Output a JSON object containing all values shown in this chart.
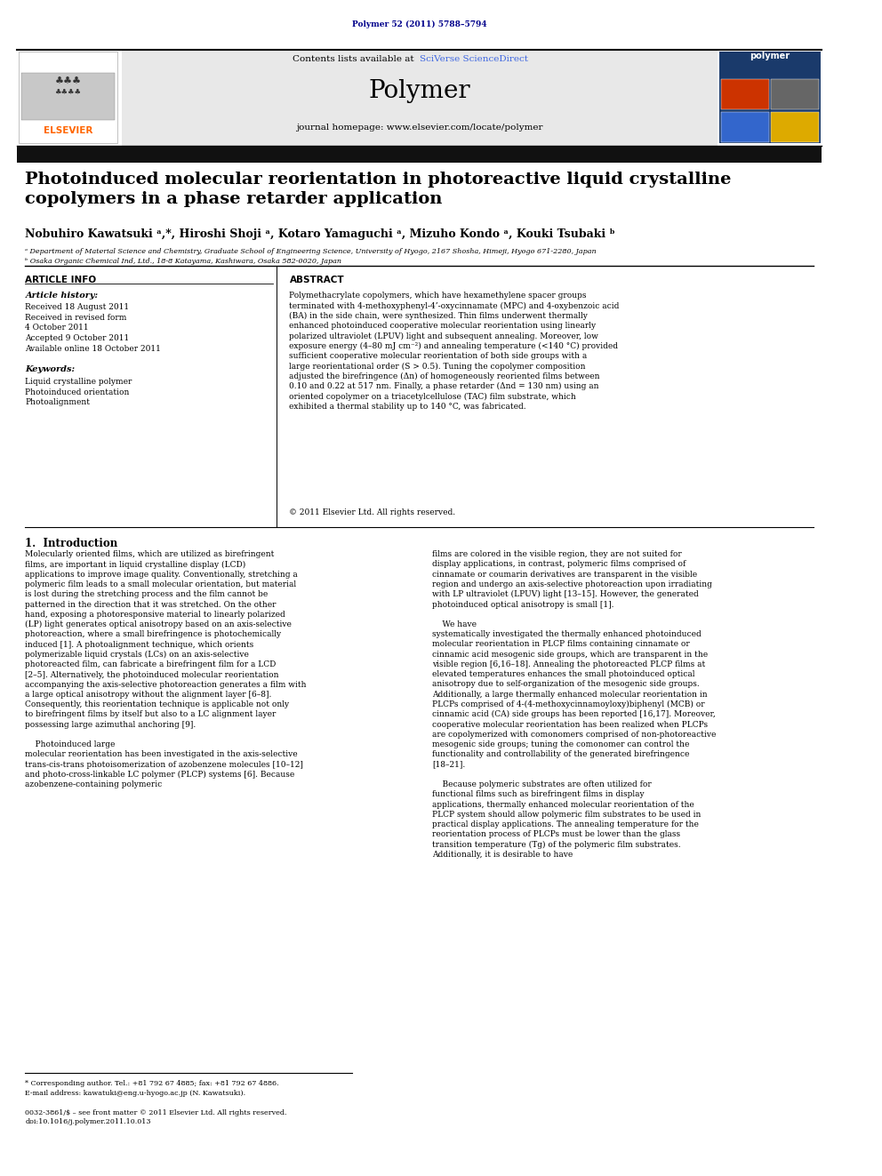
{
  "page_width": 9.92,
  "page_height": 13.23,
  "bg_color": "#ffffff",
  "journal_ref": "Polymer 52 (2011) 5788–5794",
  "journal_ref_color": "#00008B",
  "header_bg": "#e8e8e8",
  "header_text_main": "Polymer",
  "header_contents": "Contents lists available at SciVerse ScienceDirect",
  "header_sciverse": "SciVerse ScienceDirect",
  "header_homepage": "journal homepage: www.elsevier.com/locate/polymer",
  "elsevier_color": "#FF6600",
  "sciverse_color": "#4169E1",
  "article_title": "Photoinduced molecular reorientation in photoreactive liquid crystalline\ncopolymers in a phase retarder application",
  "authors": "Nobuhiro Kawatsuki ᵃ,*, Hiroshi Shoji ᵃ, Kotaro Yamaguchi ᵃ, Mizuho Kondo ᵃ, Kouki Tsubaki ᵇ",
  "affil_a": "ᵃ Department of Material Science and Chemistry, Graduate School of Engineering Science, University of Hyogo, 2167 Shosha, Himeji, Hyogo 671-2280, Japan",
  "affil_b": "ᵇ Osaka Organic Chemical Ind, Ltd., 18-8 Katayama, Kashiwara, Osaka 582-0020, Japan",
  "article_info_label": "ARTICLE INFO",
  "abstract_label": "ABSTRACT",
  "article_history_label": "Article history:",
  "received": "Received 18 August 2011",
  "received_revised1": "Received in revised form",
  "received_revised2": "4 October 2011",
  "accepted": "Accepted 9 October 2011",
  "available": "Available online 18 October 2011",
  "keywords_label": "Keywords:",
  "keyword1": "Liquid crystalline polymer",
  "keyword2": "Photoinduced orientation",
  "keyword3": "Photoalignment",
  "abstract_text": "Polymethacrylate copolymers, which have hexamethylene spacer groups terminated with 4-methoxyphenyl-4’-oxycinnamate (MPC) and 4-oxybenzoic acid (BA) in the side chain, were synthesized. Thin films underwent thermally enhanced photoinduced cooperative molecular reorientation using linearly polarized ultraviolet (LPUV) light and subsequent annealing. Moreover, low exposure energy (4–80 mJ cm⁻²) and annealing temperature (<140 °C) provided sufficient cooperative molecular reorientation of both side groups with a large reorientational order (S > 0.5). Tuning the copolymer composition adjusted the birefringence (Δn) of homogeneously reoriented films between 0.10 and 0.22 at 517 nm. Finally, a phase retarder (Δnd = 130 nm) using an oriented copolymer on a triacetylcellulose (TAC) film substrate, which exhibited a thermal stability up to 140 °C, was fabricated.",
  "copyright": "© 2011 Elsevier Ltd. All rights reserved.",
  "intro_label": "1.  Introduction",
  "intro_col1": "Molecularly oriented films, which are utilized as birefringent films, are important in liquid crystalline display (LCD) applications to improve image quality. Conventionally, stretching a polymeric film leads to a small molecular orientation, but material is lost during the stretching process and the film cannot be patterned in the direction that it was stretched. On the other hand, exposing a photoresponsive material to linearly polarized (LP) light generates optical anisotropy based on an axis-selective photoreaction, where a small birefringence is photochemically induced [1]. A photoalignment technique, which orients polymerizable liquid crystals (LCs) on an axis-selective photoreacted film, can fabricate a birefringent film for a LCD [2–5]. Alternatively, the photoinduced molecular reorientation accompanying the axis-selective photoreaction generates a film with a large optical anisotropy without the alignment layer [6–8]. Consequently, this reorientation technique is applicable not only to birefringent films by itself but also to a LC alignment layer possessing large azimuthal anchoring [9].\n\n    Photoinduced large molecular reorientation has been investigated in the axis-selective trans-cis-trans photoisomerization of azobenzene molecules [10–12] and photo-cross-linkable LC polymer (PLCP) systems [6]. Because azobenzene-containing polymeric",
  "intro_col2": "films are colored in the visible region, they are not suited for display applications, in contrast, polymeric films comprised of cinnamate or coumarin derivatives are transparent in the visible region and undergo an axis-selective photoreaction upon irradiating with LP ultraviolet (LPUV) light [13–15]. However, the generated photoinduced optical anisotropy is small [1].\n\n    We have systematically investigated the thermally enhanced photoinduced molecular reorientation in PLCP films containing cinnamate or cinnamic acid mesogenic side groups, which are transparent in the visible region [6,16–18]. Annealing the photoreacted PLCP films at elevated temperatures enhances the small photoinduced optical anisotropy due to self-organization of the mesogenic side groups. Additionally, a large thermally enhanced molecular reorientation in PLCPs comprised of 4-(4-methoxycinnamoyloxy)biphenyl (MCB) or cinnamic acid (CA) side groups has been reported [16,17]. Moreover, cooperative molecular reorientation has been realized when PLCPs are copolymerized with comonomers comprised of non-photoreactive mesogenic side groups; tuning the comonomer can control the functionality and controllability of the generated birefringence [18–21].\n\n    Because polymeric substrates are often utilized for functional films such as birefringent films in display applications, thermally enhanced molecular reorientation of the PLCP system should allow polymeric film substrates to be used in practical display applications. The annealing temperature for the reorientation process of PLCPs must be lower than the glass transition temperature (Tg) of the polymeric film substrates. Additionally, it is desirable to have",
  "footnote1": "* Corresponding author. Tel.: +81 792 67 4885; fax: +81 792 67 4886.",
  "footnote2": "E-mail address: kawatuki@eng.u-hyogo.ac.jp (N. Kawatsuki).",
  "footnote3": "0032-3861/$ – see front matter © 2011 Elsevier Ltd. All rights reserved.",
  "footnote4": "doi:10.1016/j.polymer.2011.10.013"
}
